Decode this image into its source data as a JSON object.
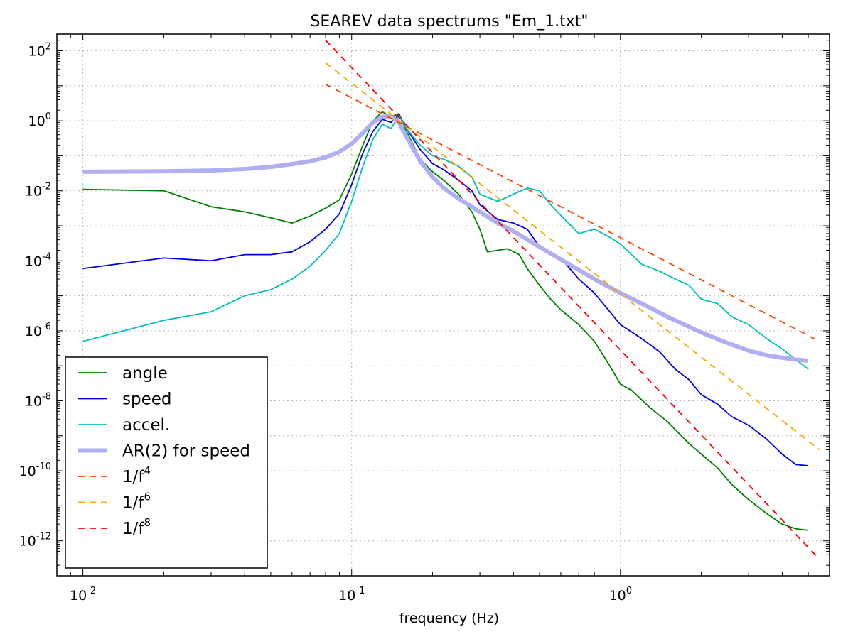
{
  "chart_data": {
    "type": "line",
    "title": "SEAREV data spectrums \"Em_1.txt\"",
    "xlabel": "frequency (Hz)",
    "ylabel": "",
    "xscale": "log",
    "yscale": "log",
    "xlim": [
      0.008,
      6.0
    ],
    "ylim": [
      1e-13,
      300.0
    ],
    "grid": true,
    "legend_position": "lower-left",
    "x_ticks": [
      {
        "value": 0.01,
        "base": "10",
        "exp": "-2"
      },
      {
        "value": 0.1,
        "base": "10",
        "exp": "-1"
      },
      {
        "value": 1,
        "base": "10",
        "exp": "0"
      }
    ],
    "y_ticks": [
      {
        "value": 100.0,
        "base": "10",
        "exp": "2"
      },
      {
        "value": 1.0,
        "base": "10",
        "exp": "0"
      },
      {
        "value": 0.01,
        "base": "10",
        "exp": "-2"
      },
      {
        "value": 0.0001,
        "base": "10",
        "exp": "-4"
      },
      {
        "value": 1e-06,
        "base": "10",
        "exp": "-6"
      },
      {
        "value": 1e-08,
        "base": "10",
        "exp": "-8"
      },
      {
        "value": 1e-10,
        "base": "10",
        "exp": "-10"
      },
      {
        "value": 1e-12,
        "base": "10",
        "exp": "-12"
      }
    ],
    "series": [
      {
        "name": "angle",
        "legend_base": "angle",
        "legend_sup": "",
        "color": "#008000",
        "style": "solid",
        "width": 1.8,
        "x": [
          0.01,
          0.02,
          0.03,
          0.04,
          0.05,
          0.06,
          0.07,
          0.08,
          0.09,
          0.1,
          0.11,
          0.12,
          0.13,
          0.14,
          0.15,
          0.16,
          0.18,
          0.2,
          0.22,
          0.25,
          0.28,
          0.3,
          0.32,
          0.35,
          0.38,
          0.42,
          0.45,
          0.5,
          0.55,
          0.6,
          0.7,
          0.8,
          0.9,
          1.0,
          1.1,
          1.3,
          1.5,
          1.8,
          2.0,
          2.3,
          2.6,
          3.0,
          3.5,
          4.0,
          4.5,
          5.0
        ],
        "y": [
          0.011,
          0.01,
          0.0035,
          0.0025,
          0.0017,
          0.0012,
          0.0019,
          0.0032,
          0.0055,
          0.03,
          0.2,
          1.0,
          1.8,
          1.3,
          1.6,
          0.5,
          0.08,
          0.035,
          0.02,
          0.008,
          0.0025,
          0.0008,
          0.00018,
          0.0002,
          0.00022,
          0.00015,
          6e-05,
          2e-05,
          8e-06,
          4e-06,
          1.5e-06,
          5e-07,
          1.2e-07,
          3e-08,
          2e-08,
          6e-09,
          2.5e-09,
          6e-10,
          3e-10,
          1.2e-10,
          4e-11,
          1.5e-11,
          6e-12,
          3e-12,
          2.2e-12,
          2e-12
        ]
      },
      {
        "name": "speed",
        "legend_base": "speed",
        "legend_sup": "",
        "color": "#0000dd",
        "style": "solid",
        "width": 1.8,
        "x": [
          0.01,
          0.02,
          0.03,
          0.04,
          0.05,
          0.06,
          0.07,
          0.08,
          0.09,
          0.1,
          0.11,
          0.12,
          0.13,
          0.14,
          0.15,
          0.16,
          0.18,
          0.2,
          0.22,
          0.25,
          0.28,
          0.3,
          0.35,
          0.4,
          0.45,
          0.5,
          0.6,
          0.7,
          0.8,
          0.9,
          1.0,
          1.2,
          1.4,
          1.6,
          1.8,
          2.0,
          2.3,
          2.6,
          3.0,
          3.5,
          4.0,
          4.5,
          5.0
        ],
        "y": [
          6e-05,
          0.00012,
          0.0001,
          0.00015,
          0.00015,
          0.00018,
          0.00035,
          0.0008,
          0.0022,
          0.015,
          0.12,
          0.5,
          1.1,
          0.9,
          1.5,
          0.6,
          0.15,
          0.06,
          0.04,
          0.02,
          0.01,
          0.004,
          0.0015,
          0.0012,
          0.0008,
          0.00025,
          0.00012,
          3e-05,
          1.2e-05,
          4e-06,
          1.5e-06,
          6e-07,
          2.5e-07,
          8e-08,
          4e-08,
          1.5e-08,
          8e-09,
          3.5e-09,
          2e-09,
          8e-10,
          3e-10,
          1.5e-10,
          1.4e-10
        ]
      },
      {
        "name": "accel.",
        "legend_base": "accel.",
        "legend_sup": "",
        "color": "#00bfbf",
        "style": "solid",
        "width": 1.8,
        "x": [
          0.01,
          0.02,
          0.03,
          0.04,
          0.05,
          0.06,
          0.07,
          0.08,
          0.09,
          0.1,
          0.11,
          0.12,
          0.13,
          0.14,
          0.15,
          0.16,
          0.18,
          0.2,
          0.22,
          0.25,
          0.28,
          0.3,
          0.35,
          0.4,
          0.45,
          0.5,
          0.55,
          0.6,
          0.7,
          0.8,
          0.9,
          1.0,
          1.2,
          1.4,
          1.6,
          1.8,
          2.0,
          2.3,
          2.6,
          3.0,
          3.5,
          4.0,
          4.5,
          5.0
        ],
        "y": [
          5e-07,
          2e-06,
          3.5e-06,
          1e-05,
          1.5e-05,
          3e-05,
          7e-05,
          0.0002,
          0.0006,
          0.005,
          0.05,
          0.3,
          0.8,
          0.6,
          1.4,
          0.6,
          0.2,
          0.1,
          0.08,
          0.05,
          0.025,
          0.008,
          0.005,
          0.008,
          0.012,
          0.01,
          0.004,
          0.002,
          0.0006,
          0.0008,
          0.0005,
          0.0003,
          8e-05,
          5e-05,
          3e-05,
          2e-05,
          8e-06,
          6e-06,
          2.5e-06,
          1.5e-06,
          6e-07,
          3e-07,
          1.5e-07,
          8e-08
        ]
      },
      {
        "name": "AR(2) for speed",
        "legend_base": "AR(2) for speed",
        "legend_sup": "",
        "color": "#b0b0f0",
        "style": "solid",
        "width": 6,
        "x": [
          0.01,
          0.02,
          0.03,
          0.04,
          0.05,
          0.06,
          0.07,
          0.08,
          0.09,
          0.1,
          0.11,
          0.12,
          0.13,
          0.14,
          0.15,
          0.16,
          0.17,
          0.18,
          0.2,
          0.22,
          0.25,
          0.3,
          0.35,
          0.4,
          0.5,
          0.6,
          0.7,
          0.8,
          1.0,
          1.2,
          1.5,
          2.0,
          2.5,
          3.0,
          3.5,
          4.0,
          4.5,
          5.0
        ],
        "y": [
          0.035,
          0.036,
          0.038,
          0.042,
          0.048,
          0.058,
          0.07,
          0.09,
          0.13,
          0.22,
          0.45,
          0.9,
          1.3,
          1.35,
          0.9,
          0.35,
          0.15,
          0.07,
          0.025,
          0.012,
          0.006,
          0.0025,
          0.0012,
          0.0007,
          0.00025,
          0.00011,
          5.5e-05,
          3e-05,
          1.2e-05,
          6e-06,
          2.5e-06,
          9e-07,
          4.5e-07,
          2.7e-07,
          2e-07,
          1.7e-07,
          1.5e-07,
          1.4e-07
        ]
      },
      {
        "name": "1/f4",
        "legend_base": "1/f",
        "legend_sup": "4",
        "color": "#ff4500",
        "style": "dashed",
        "width": 1.8,
        "x": [
          0.08,
          5.5
        ],
        "y": [
          11.0,
          5e-07
        ]
      },
      {
        "name": "1/f6",
        "legend_base": "1/f",
        "legend_sup": "6",
        "color": "#ffa500",
        "style": "dashed",
        "width": 1.8,
        "x": [
          0.08,
          5.5
        ],
        "y": [
          45.0,
          4e-10
        ]
      },
      {
        "name": "1/f8",
        "legend_base": "1/f",
        "legend_sup": "8",
        "color": "#ff0000",
        "style": "dashed",
        "width": 1.8,
        "x": [
          0.08,
          5.5
        ],
        "y": [
          200.0,
          3e-13
        ]
      }
    ]
  }
}
